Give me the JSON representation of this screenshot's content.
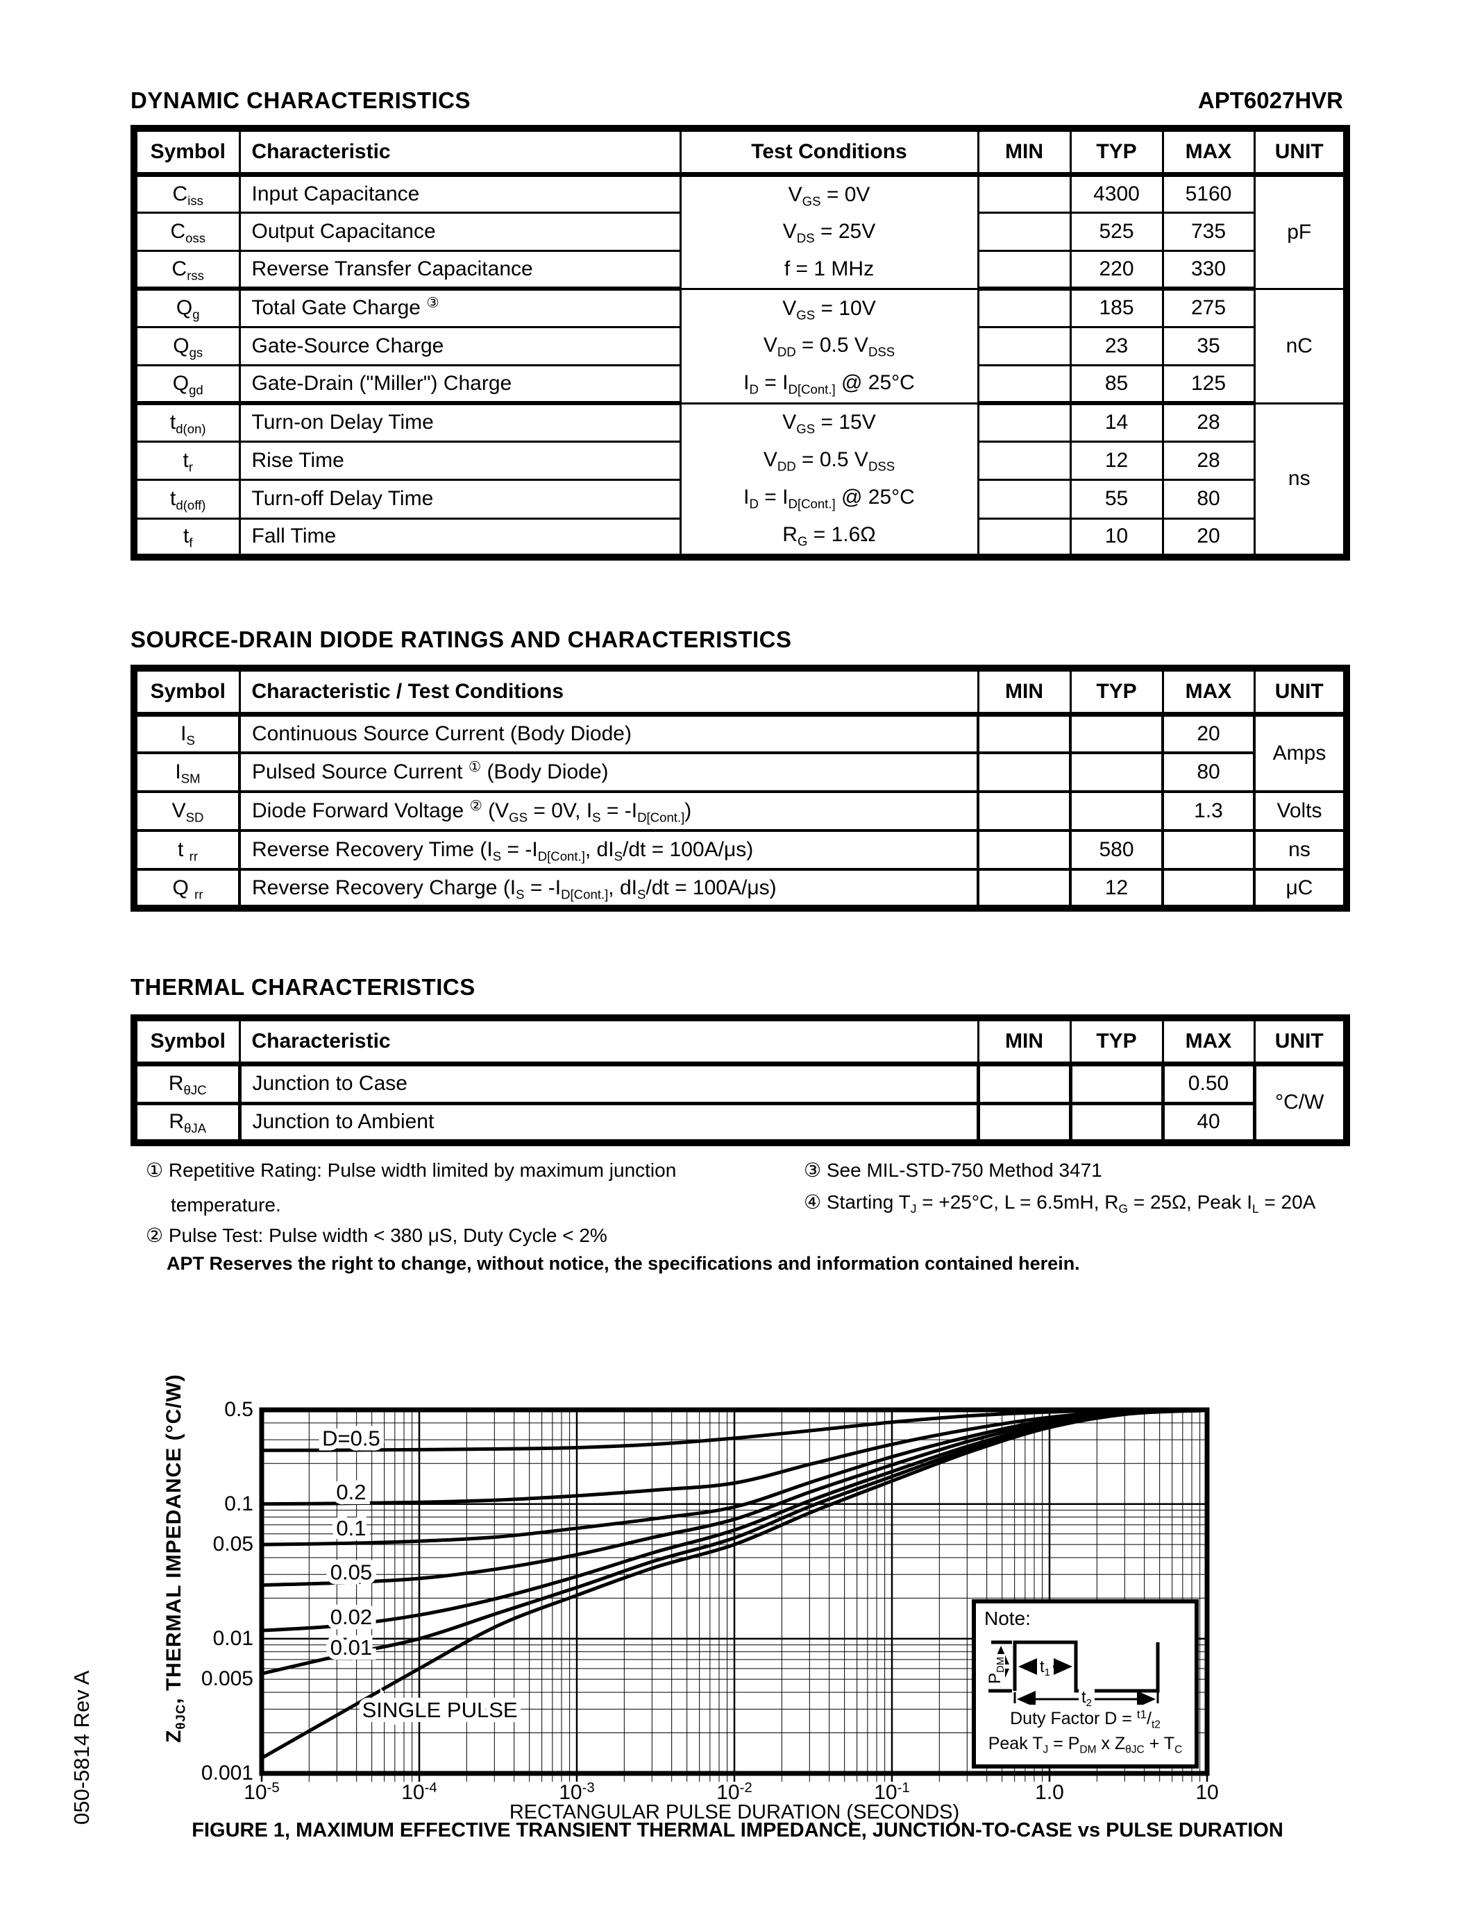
{
  "header": {
    "title": "DYNAMIC CHARACTERISTICS",
    "part_number": "APT6027HVR"
  },
  "dynamic_table": {
    "headers": [
      "Symbol",
      "Characteristic",
      "Test Conditions",
      "MIN",
      "TYP",
      "MAX",
      "UNIT"
    ],
    "groups": [
      {
        "unit": "pF",
        "conditions": [
          "V~GS~ = 0V",
          "V~DS~ = 25V",
          "f = 1 MHz"
        ],
        "rows": [
          {
            "symbol": "C~iss~",
            "characteristic": "Input Capacitance",
            "min": "",
            "typ": "4300",
            "max": "5160"
          },
          {
            "symbol": "C~oss~",
            "characteristic": "Output Capacitance",
            "min": "",
            "typ": "525",
            "max": "735"
          },
          {
            "symbol": "C~rss~",
            "characteristic": "Reverse Transfer Capacitance",
            "min": "",
            "typ": "220",
            "max": "330"
          }
        ]
      },
      {
        "unit": "nC",
        "conditions": [
          "V~GS~ = 10V",
          "V~DD~ = 0.5 V~DSS~",
          "I~D~ = I~D[Cont.]~ @ 25°C"
        ],
        "rows": [
          {
            "symbol": "Q~g~",
            "characteristic": "Total Gate Charge ^③^",
            "min": "",
            "typ": "185",
            "max": "275"
          },
          {
            "symbol": "Q~gs~",
            "characteristic": "Gate-Source Charge",
            "min": "",
            "typ": "23",
            "max": "35"
          },
          {
            "symbol": "Q~gd~",
            "characteristic": "Gate-Drain (\"Miller\") Charge",
            "min": "",
            "typ": "85",
            "max": "125"
          }
        ]
      },
      {
        "unit": "ns",
        "conditions": [
          "V~GS~ = 15V",
          "V~DD~ = 0.5 V~DSS~",
          "I~D~ = I~D[Cont.]~ @ 25°C",
          "R~G~ = 1.6Ω"
        ],
        "rows": [
          {
            "symbol": "t~d(on)~",
            "characteristic": "Turn-on Delay Time",
            "min": "",
            "typ": "14",
            "max": "28"
          },
          {
            "symbol": "t~r~",
            "characteristic": "Rise Time",
            "min": "",
            "typ": "12",
            "max": "28"
          },
          {
            "symbol": "t~d(off)~",
            "characteristic": "Turn-off Delay Time",
            "min": "",
            "typ": "55",
            "max": "80"
          },
          {
            "symbol": "t~f~",
            "characteristic": "Fall Time",
            "min": "",
            "typ": "10",
            "max": "20"
          }
        ]
      }
    ]
  },
  "diode_table": {
    "title": "SOURCE-DRAIN DIODE RATINGS AND CHARACTERISTICS",
    "headers": [
      "Symbol",
      "Characteristic / Test Conditions",
      "MIN",
      "TYP",
      "MAX",
      "UNIT"
    ],
    "groups": [
      {
        "unit": "Amps",
        "rows": [
          {
            "symbol": "I~S~",
            "characteristic": "Continuous Source Current  (Body Diode)",
            "min": "",
            "typ": "",
            "max": "20"
          },
          {
            "symbol": "I~SM~",
            "characteristic": "Pulsed Source Current ^①^  (Body Diode)",
            "min": "",
            "typ": "",
            "max": "80"
          }
        ]
      },
      {
        "unit": "Volts",
        "rows": [
          {
            "symbol": "V~SD~",
            "characteristic": "Diode Forward Voltage ^②^ (V~GS~ = 0V, I~S~ = -I~D[Cont.]~)",
            "min": "",
            "typ": "",
            "max": "1.3"
          }
        ]
      },
      {
        "unit": "ns",
        "rows": [
          {
            "symbol": "t ~rr~",
            "characteristic": "Reverse Recovery Time  (I~S~ = -I~D[Cont.]~, dI~S~/dt = 100A/μs)",
            "min": "",
            "typ": "580",
            "max": ""
          }
        ]
      },
      {
        "unit": "μC",
        "rows": [
          {
            "symbol": "Q ~rr~",
            "characteristic": "Reverse Recovery Charge  (I~S~ = -I~D[Cont.]~, dI~S~/dt = 100A/μs)",
            "min": "",
            "typ": "12",
            "max": ""
          }
        ]
      }
    ]
  },
  "thermal_table": {
    "title": "THERMAL CHARACTERISTICS",
    "headers": [
      "Symbol",
      "Characteristic",
      "MIN",
      "TYP",
      "MAX",
      "UNIT"
    ],
    "groups": [
      {
        "unit": "°C/W",
        "rows": [
          {
            "symbol": "R~θJC~",
            "characteristic": "Junction to Case",
            "min": "",
            "typ": "",
            "max": "0.50"
          },
          {
            "symbol": "R~θJA~",
            "characteristic": "Junction to Ambient",
            "min": "",
            "typ": "",
            "max": "40"
          }
        ]
      }
    ]
  },
  "notes": {
    "n1": "① Repetitive Rating: Pulse width limited by maximum junction temperature.",
    "n2": "② Pulse Test: Pulse width < 380 μS, Duty Cycle < 2%",
    "n3": "③ See MIL-STD-750 Method 3471",
    "n4": "④ Starting T~J~ = +25°C, L = 6.5mH, R~G~ = 25Ω, Peak I~L~ = 20A"
  },
  "disclaimer": "APT Reserves the right to change, without notice, the specifications and information contained herein.",
  "side_label": "050-5814 Rev A",
  "chart": {
    "y_axis_title": "Z~θJC~, THERMAL IMPEDANCE (°C/W)",
    "x_axis_title": "RECTANGULAR PULSE DURATION (SECONDS)",
    "caption": "FIGURE 1, MAXIMUM EFFECTIVE TRANSIENT THERMAL IMPEDANCE, JUNCTION-TO-CASE vs PULSE DURATION",
    "note_box": {
      "title": "Note:",
      "pdm": "P~DM~",
      "t1": "t~1~",
      "t2": "t~2~",
      "duty": "Duty Factor  D = ^t1^/~t2~",
      "peak": "Peak T~J~ = P~DM~ x Z~θJC~ + T~C~"
    }
  },
  "chart_data": {
    "type": "line",
    "x_scale": "log",
    "y_scale": "log",
    "xlim": [
      1e-05,
      10
    ],
    "ylim": [
      0.001,
      0.5
    ],
    "xlabel": "RECTANGULAR PULSE DURATION (SECONDS)",
    "ylabel": "ZθJC, THERMAL IMPEDANCE (°C/W)",
    "grid": "log minor gridlines on both axes",
    "legend_position": "curve labels inline",
    "x": [
      1e-05,
      3.16e-05,
      0.0001,
      0.000316,
      0.001,
      0.00316,
      0.01,
      0.0316,
      0.1,
      0.316,
      1,
      3.16,
      10
    ],
    "series": [
      {
        "name": "D=0.5",
        "values": [
          0.25,
          0.251,
          0.253,
          0.256,
          0.262,
          0.278,
          0.308,
          0.352,
          0.405,
          0.452,
          0.482,
          0.495,
          0.499
        ]
      },
      {
        "name": "0.2",
        "values": [
          0.1,
          0.101,
          0.103,
          0.107,
          0.115,
          0.127,
          0.143,
          0.2,
          0.277,
          0.36,
          0.44,
          0.488,
          0.498
        ]
      },
      {
        "name": "0.1",
        "values": [
          0.05,
          0.051,
          0.053,
          0.057,
          0.066,
          0.078,
          0.095,
          0.147,
          0.224,
          0.318,
          0.42,
          0.483,
          0.497
        ]
      },
      {
        "name": "0.05",
        "values": [
          0.025,
          0.026,
          0.028,
          0.033,
          0.042,
          0.057,
          0.077,
          0.125,
          0.195,
          0.295,
          0.405,
          0.478,
          0.497
        ]
      },
      {
        "name": "0.02",
        "values": [
          0.0115,
          0.0125,
          0.015,
          0.02,
          0.029,
          0.044,
          0.064,
          0.108,
          0.174,
          0.272,
          0.39,
          0.473,
          0.496
        ]
      },
      {
        "name": "0.01",
        "values": [
          0.0055,
          0.0075,
          0.01,
          0.0155,
          0.024,
          0.038,
          0.056,
          0.098,
          0.16,
          0.258,
          0.38,
          0.47,
          0.496
        ]
      },
      {
        "name": "SINGLE PULSE",
        "values": [
          0.0013,
          0.0028,
          0.006,
          0.0125,
          0.021,
          0.034,
          0.05,
          0.088,
          0.148,
          0.245,
          0.37,
          0.466,
          0.495
        ]
      }
    ],
    "xticks": [
      {
        "v": 1e-05,
        "label": "10^-5^"
      },
      {
        "v": 0.0001,
        "label": "10^-4^"
      },
      {
        "v": 0.001,
        "label": "10^-3^"
      },
      {
        "v": 0.01,
        "label": "10^-2^"
      },
      {
        "v": 0.1,
        "label": "10^-1^"
      },
      {
        "v": 1,
        "label": "1.0"
      },
      {
        "v": 10,
        "label": "10"
      }
    ],
    "yticks": [
      {
        "v": 0.5,
        "label": "0.5"
      },
      {
        "v": 0.1,
        "label": "0.1"
      },
      {
        "v": 0.05,
        "label": "0.05"
      },
      {
        "v": 0.01,
        "label": "0.01"
      },
      {
        "v": 0.005,
        "label": "0.005"
      },
      {
        "v": 0.001,
        "label": "0.001"
      }
    ],
    "annotations": [
      {
        "text": "D=0.5",
        "t": 3.7e-05,
        "z": 0.272
      },
      {
        "text": "0.2",
        "t": 3.7e-05,
        "z": 0.108
      },
      {
        "text": "0.1",
        "t": 3.7e-05,
        "z": 0.0585
      },
      {
        "text": "0.05",
        "t": 3.7e-05,
        "z": 0.0275
      },
      {
        "text": "0.02",
        "t": 3.7e-05,
        "z": 0.0128
      },
      {
        "text": "0.01",
        "t": 3.7e-05,
        "z": 0.0076
      },
      {
        "text": "SINGLE PULSE",
        "t": 0.000135,
        "z": 0.00262
      }
    ]
  }
}
